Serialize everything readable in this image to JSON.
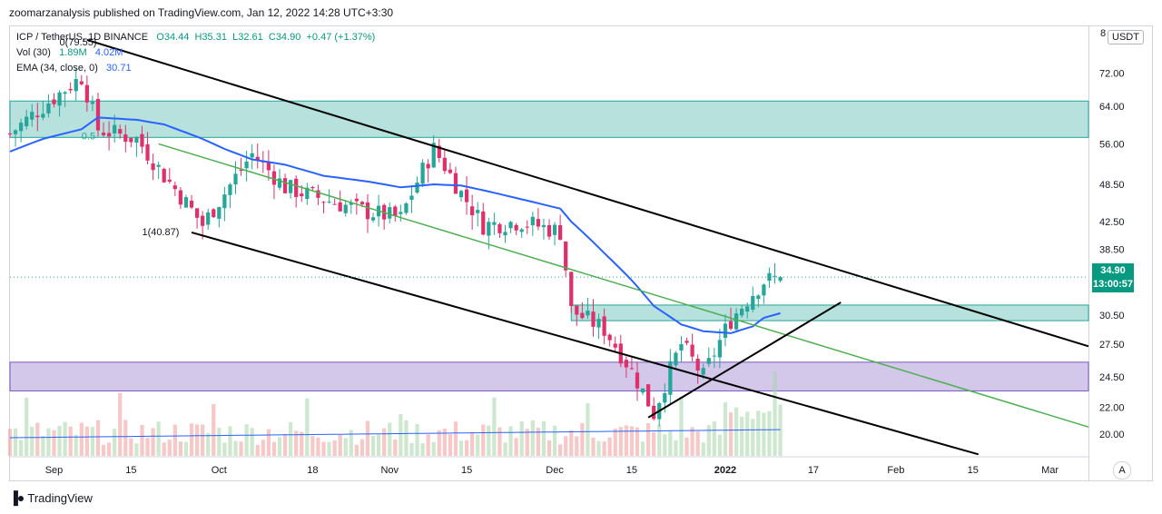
{
  "header": {
    "published_text": "zoomarzanalysis published on TradingView.com, Jan 12, 2022 14:28 UTC+3:30"
  },
  "legend": {
    "symbol": "ICP / TetherUS, 1D BINANCE",
    "open": "O34.44",
    "high": "H35.31",
    "low": "L32.61",
    "close": "C34.90",
    "change": "+0.47 (+1.37%)",
    "vol_label": "Vol (30)",
    "vol_value1": "1.89M",
    "vol_value2": "4.02M",
    "ema_label": "EMA (34, close, 0)",
    "ema_value": "30.71"
  },
  "price_axis": {
    "unit": "USDT",
    "top_label": "8",
    "last_price": "34.90",
    "countdown": "13:00:57",
    "auto_label": "A"
  },
  "annotations": {
    "high_marker": "0(79.55)",
    "low_marker": "1(40.87)",
    "fib_fragment": "0.5"
  },
  "footer": {
    "brand": "TradingView"
  },
  "colors": {
    "up": "#26a69a",
    "down": "#e0306b",
    "ema": "#2962ff",
    "zone_teal": "#b2dfdb",
    "zone_purple": "#d1c4e9",
    "channel": "#000000",
    "midline": "#4caf50"
  },
  "chart_data": {
    "type": "candlestick",
    "title": "ICP / TetherUS, 1D BINANCE",
    "y_scale": "log",
    "ylim": [
      18.5,
      85
    ],
    "y_ticks": [
      {
        "value": 72.0,
        "label": "72.00"
      },
      {
        "value": 64.0,
        "label": "64.00"
      },
      {
        "value": 56.0,
        "label": "56.00"
      },
      {
        "value": 48.5,
        "label": "48.50"
      },
      {
        "value": 42.5,
        "label": "42.50"
      },
      {
        "value": 38.5,
        "label": "38.50"
      },
      {
        "value": 30.5,
        "label": "30.50"
      },
      {
        "value": 27.5,
        "label": "27.50"
      },
      {
        "value": 24.5,
        "label": "24.50"
      },
      {
        "value": 22.0,
        "label": "22.00"
      },
      {
        "value": 20.0,
        "label": "20.00"
      }
    ],
    "x_ticks": [
      {
        "date": "2021-09-01",
        "label": "Sep"
      },
      {
        "date": "2021-09-15",
        "label": "15"
      },
      {
        "date": "2021-10-01",
        "label": "Oct"
      },
      {
        "date": "2021-10-18",
        "label": "18"
      },
      {
        "date": "2021-11-01",
        "label": "Nov"
      },
      {
        "date": "2021-11-15",
        "label": "15"
      },
      {
        "date": "2021-12-01",
        "label": "Dec"
      },
      {
        "date": "2021-12-15",
        "label": "15"
      },
      {
        "date": "2022-01-01",
        "label": "2022"
      },
      {
        "date": "2022-01-17",
        "label": "17"
      },
      {
        "date": "2022-02-01",
        "label": "Feb"
      },
      {
        "date": "2022-02-15",
        "label": "15"
      },
      {
        "date": "2022-03-01",
        "label": "Mar"
      }
    ],
    "x_range": [
      "2021-08-24",
      "2022-03-08"
    ],
    "waypoints": [
      {
        "date": "2021-08-24",
        "close": 58,
        "ema": 54.5
      },
      {
        "date": "2021-08-30",
        "close": 64,
        "ema": 57
      },
      {
        "date": "2021-09-06",
        "close": 71,
        "ema": 59
      },
      {
        "date": "2021-09-09",
        "close": 59,
        "ema": 61.5
      },
      {
        "date": "2021-09-16",
        "close": 57,
        "ema": 61
      },
      {
        "date": "2021-09-21",
        "close": 50,
        "ema": 60
      },
      {
        "date": "2021-09-28",
        "close": 42,
        "ema": 57
      },
      {
        "date": "2021-10-02",
        "close": 47,
        "ema": 55
      },
      {
        "date": "2021-10-07",
        "close": 54,
        "ema": 53
      },
      {
        "date": "2021-10-13",
        "close": 48,
        "ema": 52
      },
      {
        "date": "2021-10-20",
        "close": 46,
        "ema": 50
      },
      {
        "date": "2021-10-28",
        "close": 44,
        "ema": 49
      },
      {
        "date": "2021-11-03",
        "close": 43,
        "ema": 48
      },
      {
        "date": "2021-11-09",
        "close": 55,
        "ema": 48.5
      },
      {
        "date": "2021-11-14",
        "close": 47,
        "ema": 48.3
      },
      {
        "date": "2021-11-18",
        "close": 42,
        "ema": 47.5
      },
      {
        "date": "2021-11-25",
        "close": 42.5,
        "ema": 46
      },
      {
        "date": "2021-12-02",
        "close": 41,
        "ema": 44.5
      },
      {
        "date": "2021-12-04",
        "close": 31,
        "ema": 42.5
      },
      {
        "date": "2021-12-10",
        "close": 29,
        "ema": 38
      },
      {
        "date": "2021-12-15",
        "close": 25,
        "ema": 34.5
      },
      {
        "date": "2021-12-19",
        "close": 21.5,
        "ema": 31.5
      },
      {
        "date": "2021-12-24",
        "close": 27.5,
        "ema": 29.5
      },
      {
        "date": "2021-12-28",
        "close": 24.5,
        "ema": 28.8
      },
      {
        "date": "2022-01-02",
        "close": 30,
        "ema": 28.6
      },
      {
        "date": "2022-01-06",
        "close": 33,
        "ema": 29.3
      },
      {
        "date": "2022-01-08",
        "close": 34.4,
        "ema": 30.2
      },
      {
        "date": "2022-01-11",
        "close": 34.9,
        "ema": 30.7
      }
    ],
    "last": {
      "date": "2022-01-11",
      "open": 34.44,
      "high": 35.31,
      "low": 32.61,
      "close": 34.9
    },
    "zones": [
      {
        "from": 57.3,
        "to": 65.2,
        "color": "teal"
      },
      {
        "from": 29.9,
        "to": 31.6,
        "color": "teal",
        "start_date": "2021-12-04"
      },
      {
        "from": 23.3,
        "to": 25.8,
        "color": "purple"
      }
    ],
    "channel_upper": [
      {
        "date": "2021-09-07",
        "price": 81
      },
      {
        "date": "2022-03-08",
        "price": 27.3
      }
    ],
    "channel_lower": [
      {
        "date": "2021-09-26",
        "price": 40.9
      },
      {
        "date": "2022-02-16",
        "price": 18.6
      }
    ],
    "channel_mid": [
      {
        "date": "2021-09-20",
        "price": 56
      },
      {
        "date": "2022-03-08",
        "price": 20.5
      }
    ],
    "support_line": [
      {
        "date": "2021-12-18",
        "price": 21.2
      },
      {
        "date": "2022-01-22",
        "price": 31.9
      }
    ],
    "volume_ylim": [
      0,
      4.5
    ]
  }
}
